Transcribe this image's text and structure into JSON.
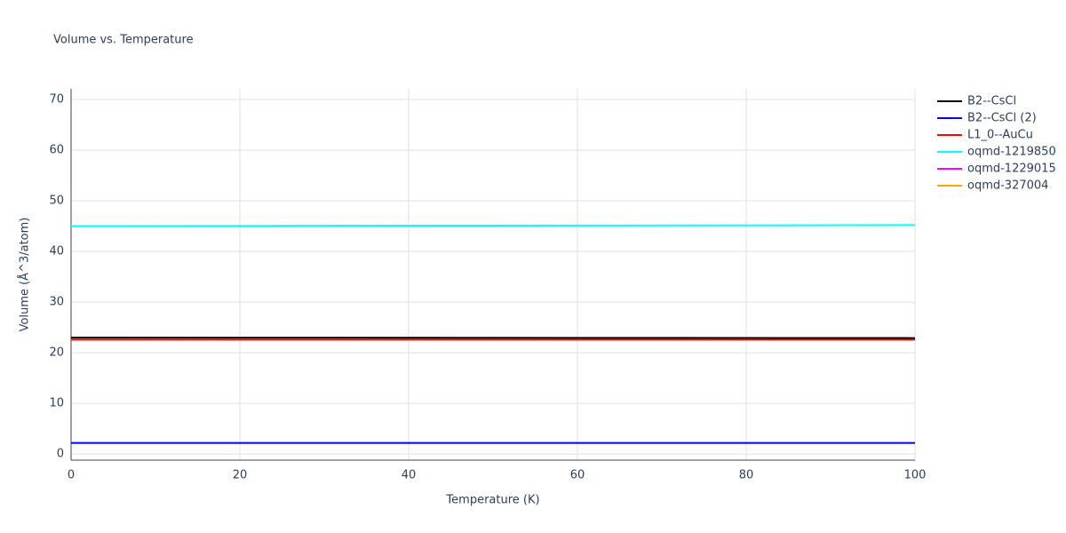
{
  "chart_data": {
    "type": "line",
    "title": "Volume vs. Temperature",
    "x_label": "Temperature (K)",
    "y_label": "Volume (Å^3/atom)",
    "x": [
      0,
      50,
      100
    ],
    "series": [
      {
        "name": "B2--CsCl",
        "color": "#000000",
        "values": [
          23.0,
          22.95,
          22.9
        ]
      },
      {
        "name": "B2--CsCl (2)",
        "color": "#0000ff",
        "values": [
          2.2,
          2.2,
          2.2
        ]
      },
      {
        "name": "L1_0--AuCu",
        "color": "#ff0000",
        "values": [
          22.6,
          22.6,
          22.6
        ]
      },
      {
        "name": "oqmd-1219850",
        "color": "#00ffff",
        "values": [
          45.0,
          45.1,
          45.2
        ]
      },
      {
        "name": "oqmd-1229015",
        "color": "#ff00ff",
        "values": [
          null,
          null,
          null
        ]
      },
      {
        "name": "oqmd-327004",
        "color": "#ffa500",
        "values": [
          null,
          null,
          null
        ]
      }
    ],
    "xlim": [
      0,
      100
    ],
    "xticks": [
      0,
      20,
      40,
      60,
      80,
      100
    ],
    "ylim": [
      -1.2,
      72.1
    ],
    "yticks": [
      0,
      10,
      20,
      30,
      40,
      50,
      60,
      70
    ],
    "grid": true,
    "legend": "right"
  }
}
